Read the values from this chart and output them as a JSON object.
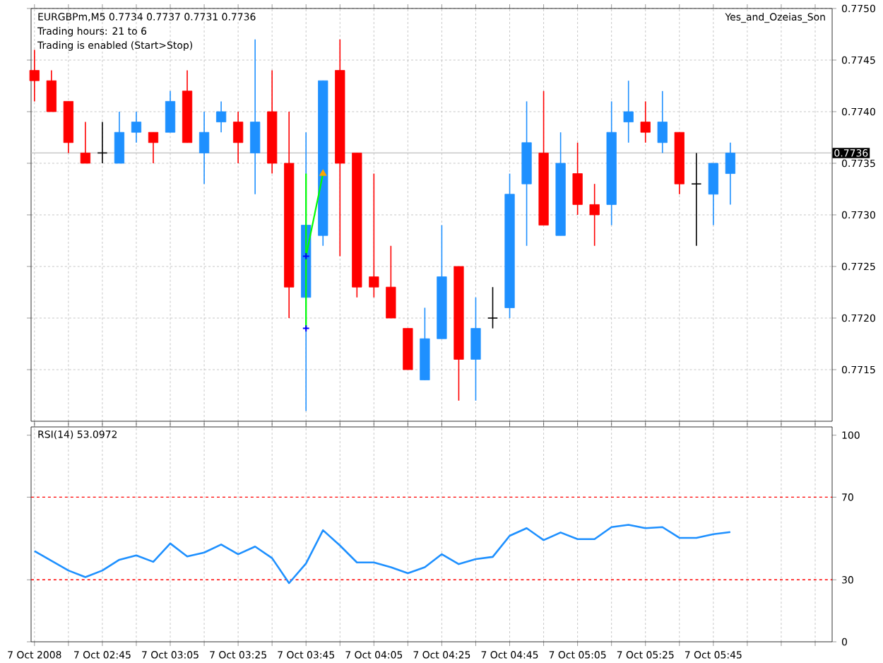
{
  "chart_data": [
    {
      "type": "candlestick",
      "x": [
        "2008-10-07T02:25",
        "2008-10-07T02:30",
        "2008-10-07T02:35",
        "2008-10-07T02:40",
        "2008-10-07T02:45",
        "2008-10-07T02:50",
        "2008-10-07T02:55",
        "2008-10-07T03:00",
        "2008-10-07T03:05",
        "2008-10-07T03:10",
        "2008-10-07T03:15",
        "2008-10-07T03:20",
        "2008-10-07T03:25",
        "2008-10-07T03:30",
        "2008-10-07T03:35",
        "2008-10-07T03:40",
        "2008-10-07T03:45",
        "2008-10-07T03:50",
        "2008-10-07T03:55",
        "2008-10-07T04:00",
        "2008-10-07T04:05",
        "2008-10-07T04:10",
        "2008-10-07T04:15",
        "2008-10-07T04:20",
        "2008-10-07T04:25",
        "2008-10-07T04:30",
        "2008-10-07T04:35",
        "2008-10-07T04:40",
        "2008-10-07T04:45",
        "2008-10-07T04:50",
        "2008-10-07T04:55",
        "2008-10-07T05:00",
        "2008-10-07T05:05",
        "2008-10-07T05:10",
        "2008-10-07T05:15",
        "2008-10-07T05:20",
        "2008-10-07T05:25",
        "2008-10-07T05:30",
        "2008-10-07T05:35",
        "2008-10-07T05:40",
        "2008-10-07T05:45",
        "2008-10-07T05:50"
      ],
      "ohlc": [
        [
          0.7744,
          0.7746,
          0.7741,
          0.7743
        ],
        [
          0.7743,
          0.7744,
          0.774,
          0.774
        ],
        [
          0.7741,
          0.7741,
          0.7736,
          0.7737
        ],
        [
          0.7736,
          0.7739,
          0.7735,
          0.7735
        ],
        [
          0.7736,
          0.7739,
          0.7735,
          0.7736
        ],
        [
          0.7735,
          0.774,
          0.7735,
          0.7738
        ],
        [
          0.7738,
          0.774,
          0.7737,
          0.7739
        ],
        [
          0.7738,
          0.7738,
          0.7735,
          0.7737
        ],
        [
          0.7738,
          0.7742,
          0.7738,
          0.7741
        ],
        [
          0.7742,
          0.7744,
          0.7737,
          0.7737
        ],
        [
          0.7736,
          0.774,
          0.7733,
          0.7738
        ],
        [
          0.7739,
          0.7741,
          0.7738,
          0.774
        ],
        [
          0.7739,
          0.774,
          0.7735,
          0.7737
        ],
        [
          0.7736,
          0.7747,
          0.7732,
          0.7739
        ],
        [
          0.774,
          0.7744,
          0.7734,
          0.7735
        ],
        [
          0.7735,
          0.774,
          0.772,
          0.7723
        ],
        [
          0.7722,
          0.7738,
          0.7711,
          0.7729
        ],
        [
          0.7728,
          0.7743,
          0.7727,
          0.7743
        ],
        [
          0.7744,
          0.7747,
          0.7726,
          0.7735
        ],
        [
          0.7736,
          0.7736,
          0.7722,
          0.7723
        ],
        [
          0.7724,
          0.7734,
          0.7722,
          0.7723
        ],
        [
          0.7723,
          0.7727,
          0.772,
          0.772
        ],
        [
          0.7719,
          0.7719,
          0.7715,
          0.7715
        ],
        [
          0.7714,
          0.7721,
          0.7714,
          0.7718
        ],
        [
          0.7718,
          0.7729,
          0.7718,
          0.7724
        ],
        [
          0.7725,
          0.7725,
          0.7712,
          0.7716
        ],
        [
          0.7716,
          0.7722,
          0.7712,
          0.7719
        ],
        [
          0.772,
          0.7723,
          0.7719,
          0.772
        ],
        [
          0.7721,
          0.7734,
          0.772,
          0.7732
        ],
        [
          0.7733,
          0.7741,
          0.7727,
          0.7737
        ],
        [
          0.7736,
          0.7742,
          0.7729,
          0.7729
        ],
        [
          0.7728,
          0.7738,
          0.7728,
          0.7735
        ],
        [
          0.7734,
          0.7737,
          0.773,
          0.7731
        ],
        [
          0.7731,
          0.7733,
          0.7727,
          0.773
        ],
        [
          0.7731,
          0.7741,
          0.7729,
          0.7738
        ],
        [
          0.7739,
          0.7743,
          0.7737,
          0.774
        ],
        [
          0.7739,
          0.7741,
          0.7737,
          0.7738
        ],
        [
          0.7737,
          0.7742,
          0.7736,
          0.7739
        ],
        [
          0.7738,
          0.7738,
          0.7732,
          0.7733
        ],
        [
          0.7733,
          0.7736,
          0.7727,
          0.7733
        ],
        [
          0.7732,
          0.7735,
          0.7729,
          0.7735
        ],
        [
          0.7734,
          0.7737,
          0.7731,
          0.7736
        ]
      ],
      "colors": [
        "#ff0000",
        "#ff0000",
        "#ff0000",
        "#ff0000",
        "#000000",
        "#1e90ff",
        "#1e90ff",
        "#ff0000",
        "#1e90ff",
        "#ff0000",
        "#1e90ff",
        "#1e90ff",
        "#ff0000",
        "#1e90ff",
        "#ff0000",
        "#ff0000",
        "#1e90ff",
        "#1e90ff",
        "#ff0000",
        "#ff0000",
        "#ff0000",
        "#ff0000",
        "#ff0000",
        "#1e90ff",
        "#1e90ff",
        "#ff0000",
        "#1e90ff",
        "#000000",
        "#1e90ff",
        "#1e90ff",
        "#ff0000",
        "#1e90ff",
        "#ff0000",
        "#ff0000",
        "#1e90ff",
        "#1e90ff",
        "#ff0000",
        "#1e90ff",
        "#ff0000",
        "#000000",
        "#1e90ff",
        "#1e90ff"
      ],
      "series": [
        {
          "type": "line",
          "color": "#00ff00",
          "x": [
            "2008-10-07T03:45",
            "2008-10-07T03:45"
          ],
          "values": [
            0.7719,
            0.7734
          ]
        },
        {
          "type": "line",
          "color": "#00ff00",
          "x": [
            "2008-10-07T03:45",
            "2008-10-07T03:50"
          ],
          "values": [
            0.7726,
            0.7734
          ]
        },
        {
          "type": "scatter",
          "marker": "cross",
          "color": "#0000ff",
          "x": [
            "2008-10-07T03:45",
            "2008-10-07T03:45"
          ],
          "values": [
            0.7726,
            0.7719
          ]
        },
        {
          "type": "scatter",
          "marker": "triangle",
          "color": "#ffa500",
          "x": [
            "2008-10-07T03:50"
          ],
          "values": [
            0.7734
          ]
        }
      ],
      "xlim": [
        "2008-10-07T02:24",
        "2008-10-07T06:20"
      ],
      "xticks": [
        {
          "value": "2008-10-07T02:25",
          "label": null
        },
        {
          "value": "2008-10-07T02:35",
          "label": null
        },
        {
          "value": "2008-10-07T02:45",
          "label": null
        },
        {
          "value": "2008-10-07T02:55",
          "label": null
        },
        {
          "value": "2008-10-07T03:05",
          "label": null
        },
        {
          "value": "2008-10-07T03:15",
          "label": null
        },
        {
          "value": "2008-10-07T03:25",
          "label": null
        },
        {
          "value": "2008-10-07T03:35",
          "label": null
        },
        {
          "value": "2008-10-07T03:45",
          "label": null
        },
        {
          "value": "2008-10-07T03:55",
          "label": null
        },
        {
          "value": "2008-10-07T04:05",
          "label": null
        },
        {
          "value": "2008-10-07T04:15",
          "label": null
        },
        {
          "value": "2008-10-07T04:25",
          "label": null
        },
        {
          "value": "2008-10-07T04:35",
          "label": null
        },
        {
          "value": "2008-10-07T04:45",
          "label": null
        },
        {
          "value": "2008-10-07T04:55",
          "label": null
        },
        {
          "value": "2008-10-07T05:05",
          "label": null
        },
        {
          "value": "2008-10-07T05:15",
          "label": null
        },
        {
          "value": "2008-10-07T05:25",
          "label": null
        },
        {
          "value": "2008-10-07T05:35",
          "label": null
        },
        {
          "value": "2008-10-07T05:45",
          "label": null
        },
        {
          "value": "2008-10-07T05:55",
          "label": null
        },
        {
          "value": "2008-10-07T06:05",
          "label": null
        },
        {
          "value": "2008-10-07T06:15",
          "label": null
        }
      ],
      "ylim": [
        0.771,
        0.775
      ],
      "yticks": [
        {
          "value": 0.7715,
          "label": "0.7715"
        },
        {
          "value": 0.772,
          "label": "0.7720"
        },
        {
          "value": 0.7725,
          "label": "0.7725"
        },
        {
          "value": 0.773,
          "label": "0.7730"
        },
        {
          "value": 0.7735,
          "label": "0.7735"
        },
        {
          "value": 0.774,
          "label": "0.7740"
        },
        {
          "value": 0.7745,
          "label": "0.7745"
        },
        {
          "value": 0.775,
          "label": "0.7750"
        }
      ],
      "ref_lines": [
        {
          "axis": "y",
          "value": 0.7736,
          "label": "0.7736",
          "color": "#c0c0c0"
        }
      ],
      "annotations": [
        "EURGBPm,M5  0.7734 0.7737 0.7731 0.7736",
        "Trading hours: 21 to 6",
        "Trading is enabled (Start>Stop)",
        "Yes_and_Ozeias_Son"
      ],
      "grid": true,
      "tick_labels": "y"
    },
    {
      "type": "line",
      "x": [
        "2008-10-07T02:25",
        "2008-10-07T02:30",
        "2008-10-07T02:35",
        "2008-10-07T02:40",
        "2008-10-07T02:45",
        "2008-10-07T02:50",
        "2008-10-07T02:55",
        "2008-10-07T03:00",
        "2008-10-07T03:05",
        "2008-10-07T03:10",
        "2008-10-07T03:15",
        "2008-10-07T03:20",
        "2008-10-07T03:25",
        "2008-10-07T03:30",
        "2008-10-07T03:35",
        "2008-10-07T03:40",
        "2008-10-07T03:45",
        "2008-10-07T03:50",
        "2008-10-07T03:55",
        "2008-10-07T04:00",
        "2008-10-07T04:05",
        "2008-10-07T04:10",
        "2008-10-07T04:15",
        "2008-10-07T04:20",
        "2008-10-07T04:25",
        "2008-10-07T04:30",
        "2008-10-07T04:35",
        "2008-10-07T04:40",
        "2008-10-07T04:45",
        "2008-10-07T04:50",
        "2008-10-07T04:55",
        "2008-10-07T05:00",
        "2008-10-07T05:05",
        "2008-10-07T05:10",
        "2008-10-07T05:15",
        "2008-10-07T05:20",
        "2008-10-07T05:25",
        "2008-10-07T05:30",
        "2008-10-07T05:35",
        "2008-10-07T05:40",
        "2008-10-07T05:45",
        "2008-10-07T05:50"
      ],
      "values": [
        43.9,
        39.2,
        34.5,
        31.3,
        34.5,
        39.7,
        41.8,
        38.7,
        47.6,
        41.3,
        43.2,
        47.1,
        42.4,
        46.1,
        40.5,
        28.4,
        37.9,
        54.0,
        46.6,
        38.4,
        38.4,
        36.1,
        33.2,
        36.1,
        42.4,
        37.6,
        40.0,
        41.1,
        51.3,
        55.0,
        49.2,
        52.9,
        49.7,
        49.7,
        55.5,
        56.6,
        55.0,
        55.5,
        50.3,
        50.3,
        52.1,
        53.1
      ],
      "color": "#1e90ff",
      "xlim": [
        "2008-10-07T02:24",
        "2008-10-07T06:20"
      ],
      "xticks": [
        {
          "value": "2008-10-07T02:25",
          "label": "7 Oct 2008"
        },
        {
          "value": "2008-10-07T02:35",
          "label": null
        },
        {
          "value": "2008-10-07T02:45",
          "label": "7 Oct 02:45"
        },
        {
          "value": "2008-10-07T02:55",
          "label": null
        },
        {
          "value": "2008-10-07T03:05",
          "label": "7 Oct 03:05"
        },
        {
          "value": "2008-10-07T03:15",
          "label": null
        },
        {
          "value": "2008-10-07T03:25",
          "label": "7 Oct 03:25"
        },
        {
          "value": "2008-10-07T03:35",
          "label": null
        },
        {
          "value": "2008-10-07T03:45",
          "label": "7 Oct 03:45"
        },
        {
          "value": "2008-10-07T03:55",
          "label": null
        },
        {
          "value": "2008-10-07T04:05",
          "label": "7 Oct 04:05"
        },
        {
          "value": "2008-10-07T04:15",
          "label": null
        },
        {
          "value": "2008-10-07T04:25",
          "label": "7 Oct 04:25"
        },
        {
          "value": "2008-10-07T04:35",
          "label": null
        },
        {
          "value": "2008-10-07T04:45",
          "label": "7 Oct 04:45"
        },
        {
          "value": "2008-10-07T04:55",
          "label": null
        },
        {
          "value": "2008-10-07T05:05",
          "label": "7 Oct 05:05"
        },
        {
          "value": "2008-10-07T05:15",
          "label": null
        },
        {
          "value": "2008-10-07T05:25",
          "label": "7 Oct 05:25"
        },
        {
          "value": "2008-10-07T05:35",
          "label": null
        },
        {
          "value": "2008-10-07T05:45",
          "label": "7 Oct 05:45"
        },
        {
          "value": "2008-10-07T05:55",
          "label": null
        },
        {
          "value": "2008-10-07T06:05",
          "label": null
        },
        {
          "value": "2008-10-07T06:15",
          "label": null
        }
      ],
      "ylim": [
        0,
        104
      ],
      "yticks": [
        0,
        30,
        70,
        100
      ],
      "ref_lines": [
        {
          "axis": "y",
          "value": 70,
          "color": "#ff0000",
          "line_style": "dashed"
        },
        {
          "axis": "y",
          "value": 30,
          "color": "#ff0000",
          "line_style": "dashed"
        }
      ],
      "annotations": [
        "RSI(14) 53.0972"
      ],
      "grid": "x"
    }
  ]
}
